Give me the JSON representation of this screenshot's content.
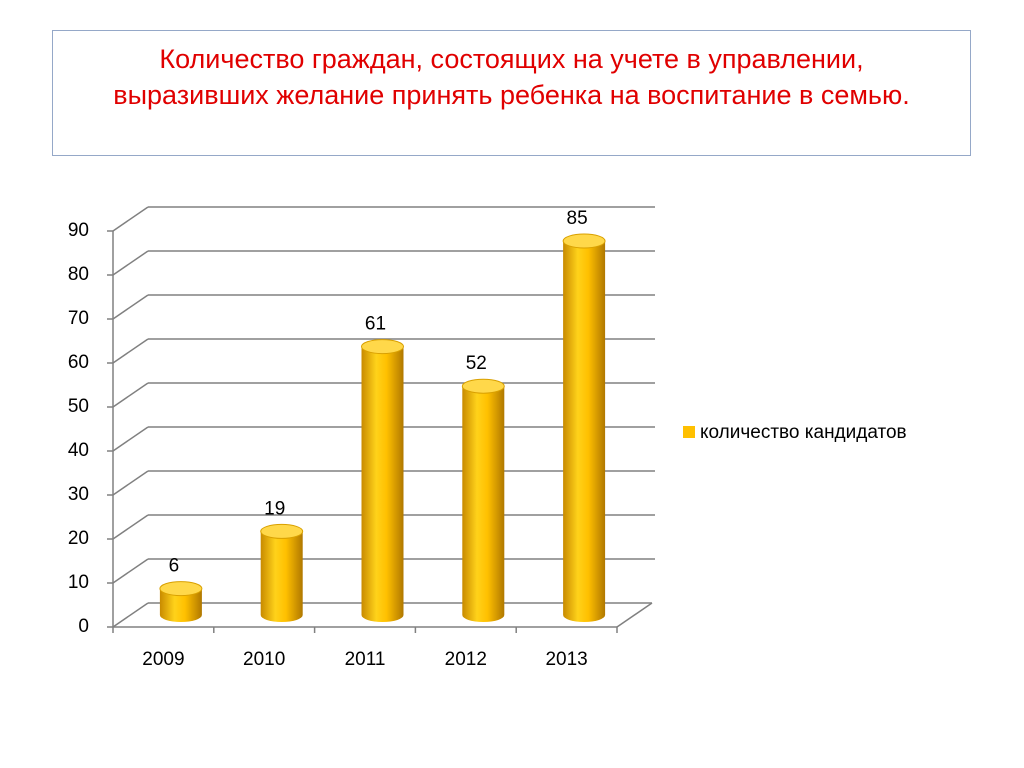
{
  "chart_data": {
    "type": "bar",
    "title": "Количество граждан, состоящих на учете в управлении, выразивших  желание принять ребенка на воспитание в семью.",
    "categories": [
      "2009",
      "2010",
      "2011",
      "2012",
      "2013"
    ],
    "series": [
      {
        "name": "количество кандидатов",
        "color": "#ffc000",
        "values": [
          6,
          19,
          61,
          52,
          85
        ]
      }
    ],
    "ylim": [
      0,
      90
    ],
    "yticks": [
      0,
      10,
      20,
      30,
      40,
      50,
      60,
      70,
      80,
      90
    ],
    "grid": true,
    "legend": "right"
  }
}
